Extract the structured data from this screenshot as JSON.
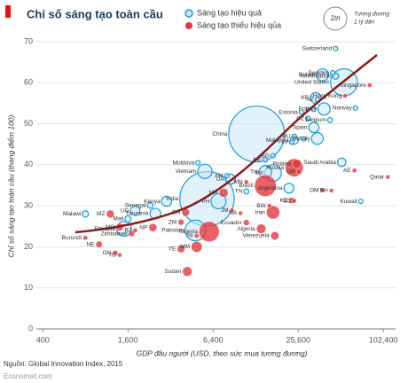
{
  "chart_data": {
    "type": "scatter",
    "title": "Chỉ số sáng tạo toàn cầu",
    "x_label": "GDP đầu người (USD, theo sức mua tương đương)",
    "y_label": "Chỉ số sáng tạo toàn cầu (thang điểm 100)",
    "size_legend_label": "1tn",
    "size_legend_note": [
      "Tương đương",
      "1 tỷ dân"
    ],
    "source": "Nguồn: Global Innovation Index, 2015",
    "credit": "Economist.com",
    "log_x": true,
    "grid": true,
    "xlim": [
      360,
      125000
    ],
    "xticks": [
      400,
      {
        "value": 1600,
        "label": "1,600"
      },
      {
        "value": 6400,
        "label": "6,400"
      },
      {
        "value": 25600,
        "label": "25,600"
      },
      {
        "value": 102400,
        "label": "102,400"
      }
    ],
    "ylim": [
      0,
      70
    ],
    "yticks": [
      0,
      10,
      20,
      30,
      40,
      50,
      60,
      70
    ],
    "series": [
      {
        "name": "Sáng tạo hiệu quả",
        "color": "#1e9ad6",
        "labels": [
          "Switzerland",
          "Sweden",
          "Britain",
          "Netherlands",
          "United States",
          "KR",
          "NZ",
          "France",
          "IL",
          "Norway",
          "Estonia",
          "CZ",
          "Belgium",
          "Spain",
          "China",
          "HU",
          "SK",
          "Italy",
          "Malaysia",
          "LV",
          "Moldova",
          "ME",
          "BG",
          "TH",
          "MX",
          "Saudi Arabia",
          "UA",
          "AM",
          "Vietnam",
          "Argentina",
          "Kuwait",
          "TN",
          "PH",
          "India",
          "Kenya",
          "Senegal",
          "Tanzania",
          "UG",
          "Malawi",
          "Mali",
          "Ethiopia",
          "Pakistan"
        ],
        "x": [
          47000,
          45000,
          38000,
          47000,
          54000,
          34000,
          35000,
          39000,
          33000,
          65000,
          27000,
          30000,
          43000,
          33000,
          13000,
          24000,
          28000,
          35000,
          24000,
          23000,
          5000,
          15000,
          17000,
          15000,
          17000,
          52000,
          8500,
          8000,
          5600,
          22000,
          71000,
          11000,
          7000,
          5800,
          3000,
          2300,
          2500,
          1800,
          800,
          1600,
          1500,
          4800
        ],
        "values": [
          68.3,
          62.4,
          61.9,
          61.6,
          60.1,
          56.3,
          55.9,
          53.6,
          53.5,
          53.8,
          52.8,
          51.3,
          50.9,
          49.1,
          47.5,
          46.9,
          46.3,
          46.4,
          46.0,
          45.5,
          40.5,
          41.2,
          42.2,
          38.3,
          38.0,
          40.6,
          36.5,
          37.3,
          38.4,
          34.3,
          31.1,
          33.5,
          31.1,
          31.7,
          31.1,
          30.1,
          28.1,
          28.8,
          28.0,
          26.8,
          24.4,
          24.0
        ],
        "sizes": [
          8,
          10,
          64,
          17,
          320,
          50,
          4.5,
          66,
          8,
          5,
          1.3,
          10.5,
          11,
          46,
          1370,
          10,
          5.4,
          60,
          30,
          2,
          3.5,
          0.6,
          7,
          68,
          120,
          31,
          45,
          3,
          90,
          43,
          4,
          11,
          100,
          1300,
          45,
          14,
          50,
          38,
          17,
          17,
          97,
          190
        ]
      },
      {
        "name": "Sáng tạo thiếu hiệu qủa",
        "color": "#e2393f",
        "labels": [
          "Singapore",
          "Hong Kong",
          "Poland",
          "GR",
          "Russia",
          "AE",
          "BH",
          "SC",
          "OM",
          "Qatar",
          "Brazil",
          "KZ",
          "BW",
          "Iran",
          "JM",
          "NA",
          "MN",
          "MA",
          "GH",
          "Ecuador",
          "Venezuela",
          "Algeria",
          "NI",
          "Nigeria",
          "MM",
          "YE",
          "Sudan",
          "NP",
          "ZM",
          "MZ",
          "MG",
          "BJ",
          "Zimbabwe",
          "Burundi",
          "NE",
          "TG",
          "GN"
        ],
        "x": [
          82000,
          55000,
          25000,
          26000,
          24000,
          64000,
          44000,
          24000,
          38000,
          110000,
          15000,
          23000,
          16000,
          17000,
          8700,
          10000,
          11000,
          7600,
          4100,
          11000,
          17500,
          14000,
          4900,
          6000,
          4900,
          3800,
          4200,
          2400,
          3800,
          1200,
          1400,
          1800,
          1700,
          800,
          1000,
          1400,
          1300
        ],
        "values": [
          59.4,
          56.8,
          40.2,
          38.3,
          39.3,
          38.6,
          33.7,
          31.2,
          33.8,
          37.0,
          34.9,
          31.3,
          30.0,
          28.4,
          28.9,
          28.2,
          35.8,
          33.2,
          28.4,
          25.9,
          22.7,
          24.4,
          22.7,
          23.7,
          20.0,
          19.5,
          14.0,
          24.7,
          26.0,
          28.0,
          24.8,
          24.0,
          23.2,
          22.2,
          20.6,
          18.0,
          18.5
        ],
        "sizes": [
          5.5,
          7,
          38,
          11,
          143,
          9,
          1.3,
          0.1,
          4,
          2.2,
          205,
          17,
          2,
          78,
          3,
          2.3,
          3,
          34,
          27,
          16,
          30,
          39,
          6,
          180,
          53,
          26,
          40,
          28,
          16,
          27,
          24,
          10,
          15,
          10,
          19,
          7,
          12
        ]
      }
    ]
  }
}
